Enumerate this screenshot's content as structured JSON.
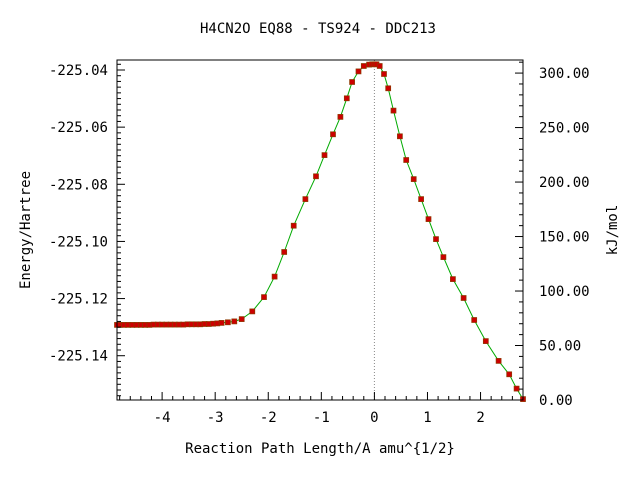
{
  "chart_data": {
    "type": "scatter",
    "title": "H4CN2O   EQ88 - TS924 - DDC213",
    "xlabel": "Reaction Path Length/A amu^{1/2}",
    "ylabel": "Energy/Hartree",
    "ylabel_right": "kJ/mol",
    "xlim": [
      -4.85,
      2.8
    ],
    "ylim": [
      -225.1555,
      -225.0365
    ],
    "ylim_right": [
      0.0,
      312.0
    ],
    "x_ticks": [
      -4,
      -3,
      -2,
      -1,
      0,
      1,
      2
    ],
    "x_tick_labels": [
      "-4",
      "-3",
      "-2",
      "-1",
      "0",
      "1",
      "2"
    ],
    "y_ticks": [
      -225.04,
      -225.06,
      -225.08,
      -225.1,
      -225.12,
      -225.14
    ],
    "y_tick_labels": [
      "-225.04",
      "-225.06",
      "-225.08",
      "-225.10",
      "-225.12",
      "-225.14"
    ],
    "y2_ticks": [
      300,
      250,
      200,
      150,
      100,
      50,
      0
    ],
    "y2_tick_labels": [
      "300.00",
      "250.00",
      "200.00",
      "150.00",
      "100.00",
      "50.00",
      "0.00"
    ],
    "ts_marker_x": 0.0,
    "colors": {
      "line": "#00aa00",
      "point_fill": "#cc0000",
      "point_stroke": "#8b3a00",
      "ts_line": "#888888",
      "axes": "#000000"
    },
    "series": [
      {
        "x": [
          -4.85,
          -4.8,
          -4.72,
          -4.64,
          -4.56,
          -4.48,
          -4.4,
          -4.32,
          -4.24,
          -4.16,
          -4.08,
          -4.0,
          -3.92,
          -3.84,
          -3.76,
          -3.68,
          -3.6,
          -3.52,
          -3.44,
          -3.36,
          -3.28,
          -3.2,
          -3.12,
          -3.04,
          -2.96,
          -2.88,
          -2.76,
          -2.64,
          -2.5,
          -2.3,
          -2.08,
          -1.88,
          -1.7,
          -1.52,
          -1.3,
          -1.1,
          -0.94,
          -0.78,
          -0.64,
          -0.52,
          -0.42,
          -0.3,
          -0.2,
          -0.1,
          -0.04,
          0.0,
          0.04,
          0.1,
          0.18,
          0.26,
          0.36,
          0.48,
          0.6,
          0.74,
          0.88,
          1.02,
          1.16,
          1.3,
          1.48,
          1.68,
          1.88,
          2.1,
          2.34,
          2.54,
          2.68,
          2.8
        ],
        "y": [
          -225.1292,
          -225.1292,
          -225.1292,
          -225.1292,
          -225.1292,
          -225.1292,
          -225.1292,
          -225.1292,
          -225.1292,
          -225.1291,
          -225.1291,
          -225.1291,
          -225.1291,
          -225.1291,
          -225.1291,
          -225.1291,
          -225.1291,
          -225.129,
          -225.129,
          -225.129,
          -225.129,
          -225.1289,
          -225.1289,
          -225.1288,
          -225.1287,
          -225.1285,
          -225.1283,
          -225.128,
          -225.1272,
          -225.1245,
          -225.1195,
          -225.1123,
          -225.1037,
          -225.0945,
          -225.0852,
          -225.0772,
          -225.0698,
          -225.0625,
          -225.0564,
          -225.0499,
          -225.0442,
          -225.0405,
          -225.0386,
          -225.0381,
          -225.038,
          -225.038,
          -225.038,
          -225.0386,
          -225.0414,
          -225.0464,
          -225.0542,
          -225.0632,
          -225.0715,
          -225.0782,
          -225.0852,
          -225.0922,
          -225.0992,
          -225.1055,
          -225.1132,
          -225.1198,
          -225.1275,
          -225.1349,
          -225.1418,
          -225.1465,
          -225.1515,
          -225.1552
        ]
      }
    ]
  }
}
